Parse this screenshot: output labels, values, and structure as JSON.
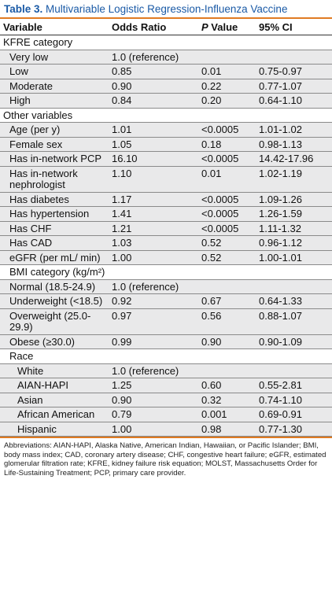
{
  "title": {
    "label": "Table 3.",
    "text": "Multivariable Logistic Regression-Influenza Vaccine"
  },
  "columns": {
    "variable": "Variable",
    "odds_ratio": "Odds Ratio",
    "p_value_italic": "P",
    "p_value_rest": " Value",
    "ci": "95% CI"
  },
  "rows": [
    {
      "type": "section",
      "name": "KFRE category",
      "indent": 0
    },
    {
      "type": "data",
      "name": "Very low",
      "or": "1.0 (reference)",
      "p": "",
      "ci": "",
      "indent": 1,
      "shade": true
    },
    {
      "type": "data",
      "name": "Low",
      "or": "0.85",
      "p": "0.01",
      "ci": "0.75-0.97",
      "indent": 1,
      "shade": true
    },
    {
      "type": "data",
      "name": "Moderate",
      "or": "0.90",
      "p": "0.22",
      "ci": "0.77-1.07",
      "indent": 1,
      "shade": true
    },
    {
      "type": "data",
      "name": "High",
      "or": "0.84",
      "p": "0.20",
      "ci": "0.64-1.10",
      "indent": 1,
      "shade": true
    },
    {
      "type": "section",
      "name": "Other variables",
      "indent": 0
    },
    {
      "type": "data",
      "name": "Age (per y)",
      "or": "1.01",
      "p": "<0.0005",
      "ci": "1.01-1.02",
      "indent": 1,
      "shade": true
    },
    {
      "type": "data",
      "name": "Female sex",
      "or": "1.05",
      "p": "0.18",
      "ci": "0.98-1.13",
      "indent": 1,
      "shade": true
    },
    {
      "type": "data",
      "name": "Has in-network PCP",
      "or": "16.10",
      "p": "<0.0005",
      "ci": "14.42-17.96",
      "indent": 1,
      "shade": true
    },
    {
      "type": "data",
      "name": "Has in-network nephrologist",
      "or": "1.10",
      "p": "0.01",
      "ci": "1.02-1.19",
      "indent": 1,
      "shade": true
    },
    {
      "type": "data",
      "name": "Has diabetes",
      "or": "1.17",
      "p": "<0.0005",
      "ci": "1.09-1.26",
      "indent": 1,
      "shade": true
    },
    {
      "type": "data",
      "name": "Has hypertension",
      "or": "1.41",
      "p": "<0.0005",
      "ci": "1.26-1.59",
      "indent": 1,
      "shade": true
    },
    {
      "type": "data",
      "name": "Has CHF",
      "or": "1.21",
      "p": "<0.0005",
      "ci": "1.11-1.32",
      "indent": 1,
      "shade": true
    },
    {
      "type": "data",
      "name": "Has CAD",
      "or": "1.03",
      "p": "0.52",
      "ci": "0.96-1.12",
      "indent": 1,
      "shade": true
    },
    {
      "type": "data",
      "name": "eGFR (per mL/ min)",
      "or": "1.00",
      "p": "0.52",
      "ci": "1.00-1.01",
      "indent": 1,
      "shade": true
    },
    {
      "type": "section",
      "name": "BMI category (kg/m²)",
      "indent": 1
    },
    {
      "type": "data",
      "name": "Normal (18.5-24.9)",
      "or": "1.0 (reference)",
      "p": "",
      "ci": "",
      "indent": 1,
      "shade": true
    },
    {
      "type": "data",
      "name": "Underweight (<18.5)",
      "or": "0.92",
      "p": "0.67",
      "ci": "0.64-1.33",
      "indent": 1,
      "shade": true
    },
    {
      "type": "data",
      "name": "Overweight (25.0-29.9)",
      "or": "0.97",
      "p": "0.56",
      "ci": "0.88-1.07",
      "indent": 1,
      "shade": true
    },
    {
      "type": "data",
      "name": "Obese (≥30.0)",
      "or": "0.99",
      "p": "0.90",
      "ci": "0.90-1.09",
      "indent": 1,
      "shade": true
    },
    {
      "type": "section",
      "name": "Race",
      "indent": 1
    },
    {
      "type": "data",
      "name": "White",
      "or": "1.0 (reference)",
      "p": "",
      "ci": "",
      "indent": 2,
      "shade": true
    },
    {
      "type": "data",
      "name": "AIAN-HAPI",
      "or": "1.25",
      "p": "0.60",
      "ci": "0.55-2.81",
      "indent": 2,
      "shade": true
    },
    {
      "type": "data",
      "name": "Asian",
      "or": "0.90",
      "p": "0.32",
      "ci": "0.74-1.10",
      "indent": 2,
      "shade": true
    },
    {
      "type": "data",
      "name": "African American",
      "or": "0.79",
      "p": "0.001",
      "ci": "0.69-0.91",
      "indent": 2,
      "shade": true
    },
    {
      "type": "data",
      "name": "Hispanic",
      "or": "1.00",
      "p": "0.98",
      "ci": "0.77-1.30",
      "indent": 2,
      "shade": true
    }
  ],
  "footnote": "Abbreviations: AIAN-HAPI, Alaska Native, American Indian, Hawaiian, or Pacific Islander; BMI, body mass index; CAD, coronary artery disease; CHF, congestive heart failure; eGFR, estimated glomerular filtration rate; KFRE, kidney failure risk equation; MOLST, Massachusetts Order for Life-Sustaining Treatment; PCP, primary care provider.",
  "colors": {
    "title": "#1a5aa6",
    "rule": "#e07b22",
    "shade": "#e9e9ea"
  }
}
